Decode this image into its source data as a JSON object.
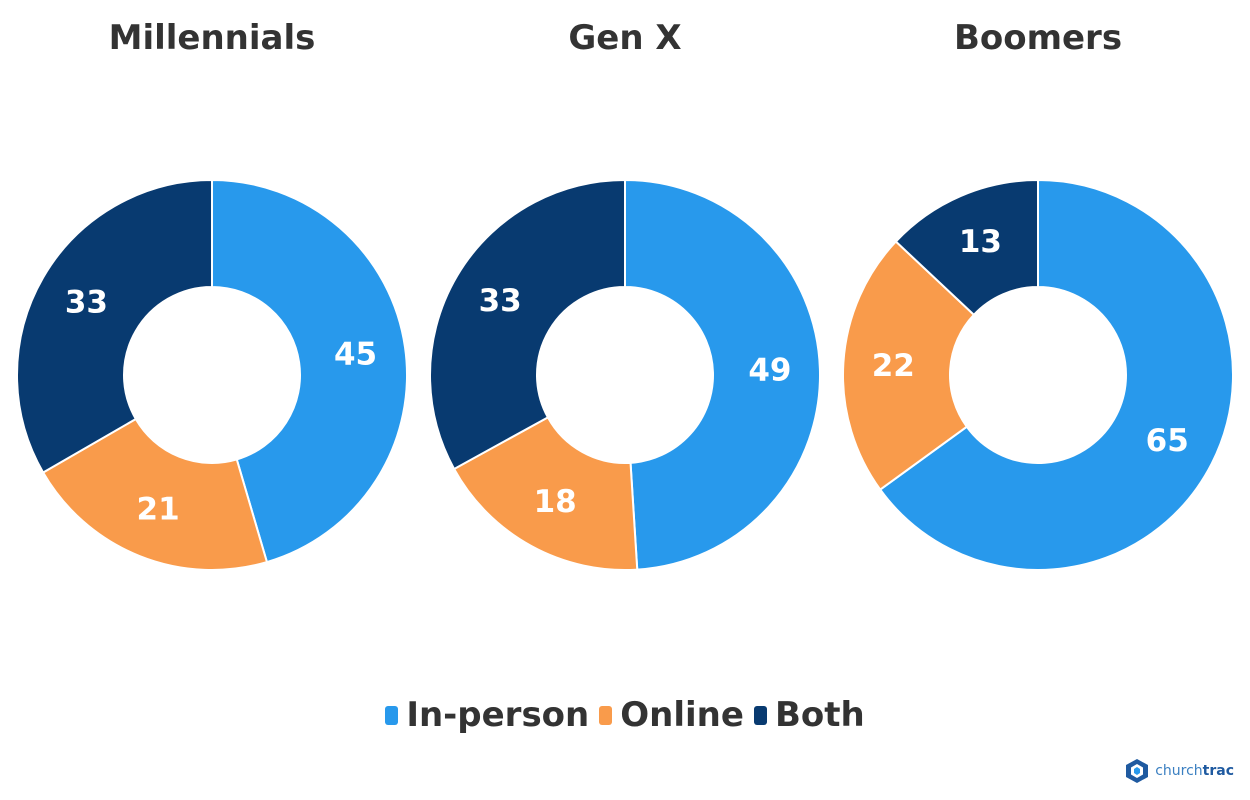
{
  "chart_data": [
    {
      "type": "pie",
      "title": "Millennials",
      "categories": [
        "In-person",
        "Online",
        "Both"
      ],
      "values": [
        45,
        21,
        33
      ]
    },
    {
      "type": "pie",
      "title": "Gen X",
      "categories": [
        "In-person",
        "Online",
        "Both"
      ],
      "values": [
        49,
        18,
        33
      ]
    },
    {
      "type": "pie",
      "title": "Boomers",
      "categories": [
        "In-person",
        "Online",
        "Both"
      ],
      "values": [
        65,
        22,
        13
      ]
    }
  ],
  "legend": {
    "placement": "bottom",
    "items": [
      {
        "label": "In-person",
        "color": "#2899EC"
      },
      {
        "label": "Online",
        "color": "#F99B4B"
      },
      {
        "label": "Both",
        "color": "#083A70"
      }
    ]
  },
  "logo": {
    "name": "churchtrac",
    "text_a": "church",
    "text_b": "trac",
    "icon": "cube-icon"
  }
}
